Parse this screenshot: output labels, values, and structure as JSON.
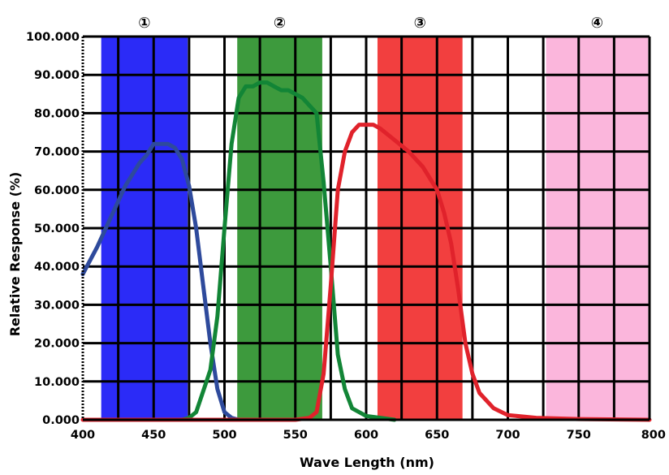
{
  "chart_data": {
    "type": "line",
    "xlabel": "Wave Length (nm)",
    "ylabel": "Relative Response (%)",
    "xlim": [
      400,
      800
    ],
    "ylim": [
      0,
      100
    ],
    "x_ticks": [
      "400",
      "450",
      "500",
      "550",
      "600",
      "650",
      "700",
      "750",
      "800"
    ],
    "y_ticks": [
      "0.000",
      "10.000",
      "20.000",
      "30.000",
      "40.000",
      "50.000",
      "60.000",
      "70.000",
      "80.000",
      "90.000",
      "100.000"
    ],
    "grid": true,
    "bands": [
      {
        "label": "①",
        "start": 413,
        "end": 474,
        "color": "#2b2bf7"
      },
      {
        "label": "②",
        "start": 509,
        "end": 569,
        "color": "#3d9a3d"
      },
      {
        "label": "③",
        "start": 608,
        "end": 668,
        "color": "#f23f3f"
      },
      {
        "label": "④",
        "start": 727,
        "end": 799,
        "color": "#fbb6dc"
      }
    ],
    "series": [
      {
        "color": "#2e4a9c",
        "x": [
          400,
          410,
          420,
          430,
          440,
          445,
          450,
          455,
          460,
          465,
          470,
          475,
          480,
          485,
          490,
          495,
          500,
          505,
          510,
          520
        ],
        "y": [
          38,
          45,
          53,
          61,
          67,
          69,
          72,
          72,
          72,
          71,
          68,
          61,
          50,
          35,
          20,
          8,
          2,
          0.5,
          0,
          0
        ]
      },
      {
        "color": "#128536",
        "x": [
          470,
          475,
          480,
          490,
          495,
          500,
          505,
          510,
          515,
          520,
          525,
          530,
          535,
          540,
          545,
          550,
          555,
          560,
          565,
          570,
          575,
          580,
          585,
          590,
          600,
          610,
          620
        ],
        "y": [
          0,
          0.5,
          2,
          13,
          27,
          50,
          72,
          84,
          87,
          87,
          88,
          88,
          87,
          86,
          86,
          85,
          84,
          82,
          80,
          62,
          40,
          17,
          8,
          3,
          1,
          0.5,
          0
        ]
      },
      {
        "color": "#e0222b",
        "x": [
          400,
          520,
          550,
          560,
          565,
          570,
          575,
          580,
          585,
          590,
          595,
          600,
          605,
          610,
          620,
          630,
          640,
          650,
          655,
          660,
          665,
          670,
          675,
          680,
          690,
          700,
          720,
          750,
          800
        ],
        "y": [
          0,
          0,
          0,
          0.5,
          2,
          12,
          35,
          60,
          70,
          75,
          77,
          77,
          77,
          76,
          73,
          70,
          66,
          60,
          54,
          46,
          34,
          20,
          12,
          7,
          3,
          1.2,
          0.5,
          0.2,
          0
        ]
      }
    ]
  }
}
